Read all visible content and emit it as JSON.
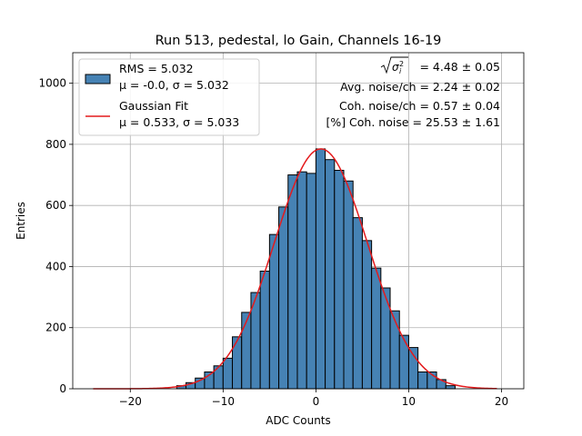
{
  "chart_data": {
    "type": "bar",
    "title": "Run 513, pedestal, lo Gain, Channels 16-19",
    "xlabel": "ADC Counts",
    "ylabel": "Entries",
    "xlim": [
      -26.2,
      22.4
    ],
    "ylim": [
      0,
      1100
    ],
    "xticks": [
      -20,
      -10,
      0,
      10,
      20
    ],
    "yticks": [
      0,
      200,
      400,
      600,
      800,
      1000
    ],
    "grid": true,
    "bin_width": 1,
    "bin_lefts": [
      -15,
      -14,
      -13,
      -12,
      -11,
      -10,
      -9,
      -8,
      -7,
      -6,
      -5,
      -4,
      -3,
      -2,
      -1,
      0,
      1,
      2,
      3,
      4,
      5,
      6,
      7,
      8,
      9,
      10,
      11,
      12,
      13,
      14
    ],
    "counts": [
      10,
      20,
      35,
      55,
      75,
      100,
      170,
      250,
      315,
      385,
      505,
      595,
      700,
      710,
      705,
      785,
      750,
      715,
      680,
      560,
      485,
      395,
      330,
      255,
      175,
      135,
      55,
      55,
      30,
      10
    ],
    "fit_curve": {
      "name": "Gaussian Fit",
      "mu": 0.533,
      "sigma": 5.033,
      "amplitude": 785,
      "x_range": [
        -24,
        19.5
      ]
    },
    "legend": {
      "placement": "upper-left",
      "entries": [
        {
          "line1": "RMS = 5.032",
          "line2": "μ = -0.0, σ = 5.032",
          "style": "patch"
        },
        {
          "line1": "Gaussian Fit",
          "line2": "μ = 0.533, σ = 5.033",
          "style": "line"
        }
      ]
    },
    "annotations": {
      "sigma_sqrt_value": " = 4.48 ± 0.05",
      "avg_noise": "Avg. noise/ch = 2.24 ± 0.02",
      "coh_noise": "Coh. noise/ch = 0.57 ± 0.04",
      "coh_pct": "[%] Coh. noise = 25.53 ± 1.61"
    },
    "colors": {
      "bar_fill": "#4682b4",
      "bar_edge": "#000000",
      "fit_line": "#e41a1c",
      "grid": "#b0b0b0"
    }
  }
}
